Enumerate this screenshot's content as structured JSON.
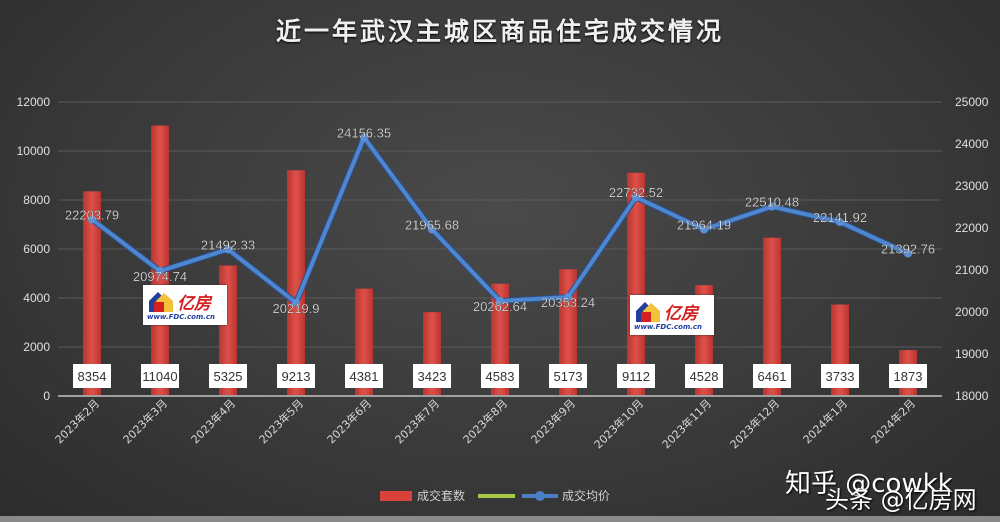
{
  "chart_data": {
    "type": "bar+line",
    "title": "近一年武汉主城区商品住宅成交情况",
    "categories": [
      "2023年2月",
      "2023年3月",
      "2023年4月",
      "2023年5月",
      "2023年6月",
      "2023年7月",
      "2023年8月",
      "2023年9月",
      "2023年10月",
      "2023年11月",
      "2023年12月",
      "2024年1月",
      "2024年2月"
    ],
    "series": [
      {
        "name": "成交套数",
        "type": "bar",
        "axis": "left",
        "color": "#d9413b",
        "values": [
          8354,
          11040,
          5325,
          9213,
          4381,
          3423,
          4583,
          5173,
          9112,
          4528,
          6461,
          3733,
          1873
        ],
        "labels": [
          "8354",
          "11040",
          "5325",
          "9213",
          "4381",
          "3423",
          "4583",
          "5173",
          "9112",
          "4528",
          "6461",
          "3733",
          "1873"
        ]
      },
      {
        "name": "成交均价",
        "type": "line",
        "axis": "right",
        "color": "#4a7fc8",
        "values": [
          22203.79,
          20974.74,
          21492.33,
          20219.9,
          24156.35,
          21965.68,
          20262.64,
          20353.24,
          22732.52,
          21964.19,
          22510.48,
          22141.92,
          21392.76
        ],
        "labels": [
          "22203.79",
          "20974.74",
          "21492.33",
          "20219.9",
          "24156.35",
          "21965.68",
          "20262.64",
          "20353.24",
          "22732.52",
          "21964.19",
          "22510.48",
          "22141.92",
          "21392.76"
        ]
      }
    ],
    "left_axis": {
      "ylim": [
        0,
        12000
      ],
      "ticks": [
        "0",
        "2000",
        "4000",
        "6000",
        "8000",
        "10000",
        "12000"
      ]
    },
    "right_axis": {
      "ylim": [
        18000,
        25000
      ],
      "ticks": [
        "18000",
        "19000",
        "20000",
        "21000",
        "22000",
        "23000",
        "24000",
        "25000"
      ]
    },
    "legend": {
      "position": "bottom",
      "items": [
        {
          "label": "成交套数",
          "color": "#d9413b",
          "marker": "rect"
        },
        {
          "label": "",
          "color": "#a8c84a",
          "marker": "line"
        },
        {
          "label": "成交均价",
          "color": "#4a7fc8",
          "marker": "line-dot"
        }
      ]
    },
    "grid": true
  },
  "watermarks": {
    "zhihu": "知乎 @cowkk",
    "toutiao": "头条 @亿房网",
    "logo_brand": "亿房",
    "logo_url": "www.FDC.com.cn"
  }
}
